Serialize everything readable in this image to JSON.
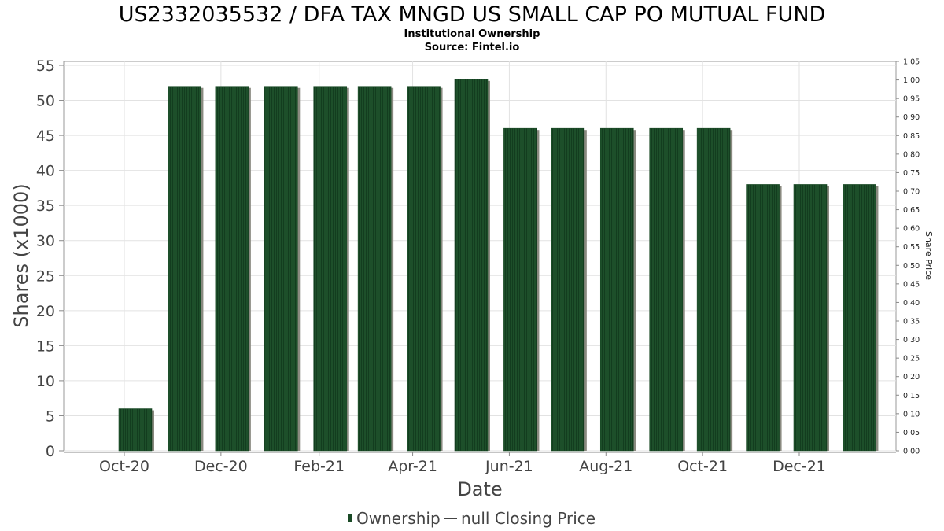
{
  "chart_data": {
    "type": "bar",
    "title": "US2332035532 / DFA TAX MNGD US SMALL CAP PO MUTUAL FUND",
    "subtitle": "Institutional Ownership",
    "source": "Source: Fintel.io",
    "xlabel": "Date",
    "ylabel": "Shares (x1000)",
    "y2label": "Share Price",
    "ylim": [
      0,
      55
    ],
    "y2lim": [
      0.0,
      1.05
    ],
    "yticks": [
      "0",
      "5",
      "10",
      "15",
      "20",
      "25",
      "30",
      "35",
      "40",
      "45",
      "50",
      "55"
    ],
    "y2ticks": [
      "0.00",
      "0.05",
      "0.10",
      "0.15",
      "0.20",
      "0.25",
      "0.30",
      "0.35",
      "0.40",
      "0.45",
      "0.50",
      "0.55",
      "0.60",
      "0.65",
      "0.70",
      "0.75",
      "0.80",
      "0.85",
      "0.90",
      "0.95",
      "1.00",
      "1.05"
    ],
    "xticks": [
      "Oct-20",
      "Dec-20",
      "Feb-21",
      "Apr-21",
      "Jun-21",
      "Aug-21",
      "Oct-21",
      "Dec-21"
    ],
    "grid": true,
    "series": [
      {
        "name": "Ownership",
        "x": [
          "2020-10-01",
          "2020-11-01",
          "2020-12-01",
          "2021-01-01",
          "2021-02-01",
          "2021-03-01",
          "2021-04-01",
          "2021-05-01",
          "2021-06-01",
          "2021-07-01",
          "2021-08-01",
          "2021-09-01",
          "2021-10-01",
          "2021-11-01",
          "2021-12-01",
          "2022-01-01"
        ],
        "values": [
          6,
          52,
          52,
          52,
          52,
          52,
          52,
          53,
          46,
          46,
          46,
          46,
          46,
          38,
          38,
          38
        ]
      }
    ],
    "legend": {
      "position": "bottom",
      "items": [
        "Ownership",
        "null Closing Price"
      ]
    },
    "colors": {
      "bar": "#1a4a26",
      "bar_shadow": "#8a8a80",
      "grid": "#e2e2e2"
    }
  }
}
